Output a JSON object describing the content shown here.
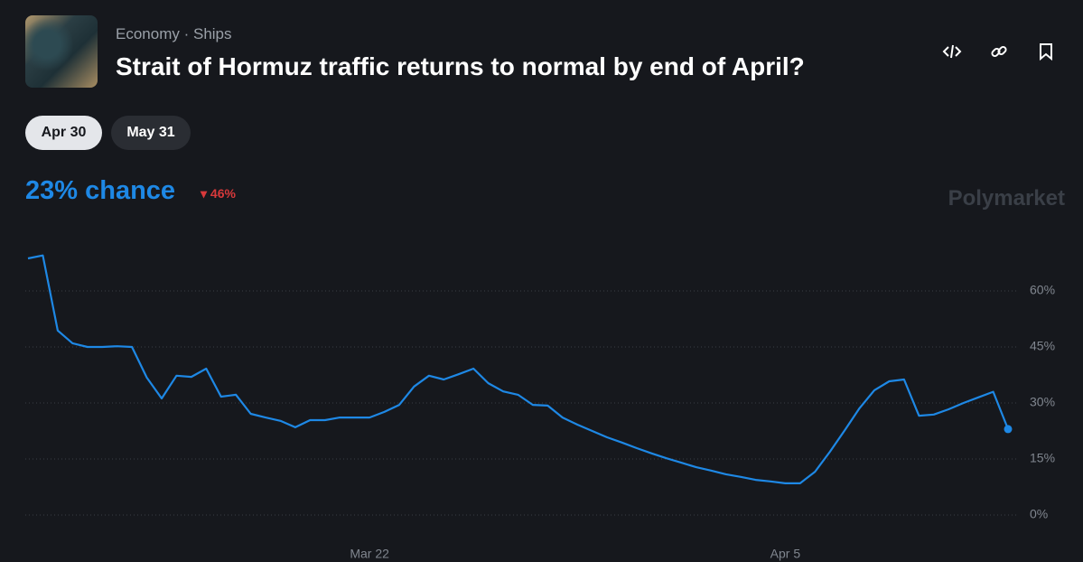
{
  "header": {
    "breadcrumbs": [
      "Economy",
      "Ships"
    ],
    "title": "Strait of Hormuz traffic returns to normal by end of April?"
  },
  "tabs": [
    "Apr 30",
    "May 31"
  ],
  "chance": {
    "label": "23% chance",
    "change": "46%"
  },
  "brand": "Polymarket",
  "chart_data": {
    "type": "line",
    "categories": [
      null,
      null,
      null,
      null,
      null,
      null,
      null,
      null,
      null,
      null,
      null,
      null,
      null,
      null,
      null,
      null,
      null,
      null,
      null,
      null,
      null,
      null,
      null,
      "Mar 22",
      null,
      null,
      null,
      null,
      null,
      null,
      null,
      null,
      null,
      null,
      null,
      null,
      null,
      null,
      null,
      null,
      null,
      null,
      null,
      null,
      null,
      null,
      null,
      null,
      null,
      null,
      null,
      "Apr 5",
      null,
      null,
      null,
      null,
      null,
      null,
      null,
      null,
      null,
      null,
      null,
      null,
      null,
      null,
      null
    ],
    "series": [
      {
        "name": "Apr 30",
        "color": "#1e88e5",
        "values": [
          68.7,
          69.5,
          49.4,
          46.0,
          45.0,
          45.0,
          45.2,
          45.0,
          36.8,
          31.2,
          37.3,
          37.0,
          39.2,
          31.7,
          32.2,
          27.1,
          26.1,
          25.2,
          23.5,
          25.4,
          25.4,
          26.1,
          26.1,
          26.1,
          27.6,
          29.5,
          34.4,
          37.3,
          36.3,
          37.7,
          39.2,
          35.3,
          33.1,
          32.2,
          29.5,
          29.3,
          26.1,
          24.2,
          22.5,
          20.8,
          19.4,
          17.9,
          16.5,
          15.2,
          14.0,
          12.8,
          11.9,
          10.9,
          10.2,
          9.4,
          9.0,
          8.5,
          8.5,
          11.6,
          16.9,
          22.7,
          28.6,
          33.4,
          35.8,
          36.3,
          26.6,
          26.9,
          28.3,
          30.0,
          31.5,
          33.0,
          23
        ]
      }
    ],
    "ylim": [
      0,
      75
    ],
    "yticks": [
      {
        "value": 0,
        "label": "0%"
      },
      {
        "value": 15,
        "label": "15%"
      },
      {
        "value": 30,
        "label": "30%"
      },
      {
        "value": 45,
        "label": "45%"
      },
      {
        "value": 60,
        "label": "60%"
      }
    ],
    "grid": true
  }
}
